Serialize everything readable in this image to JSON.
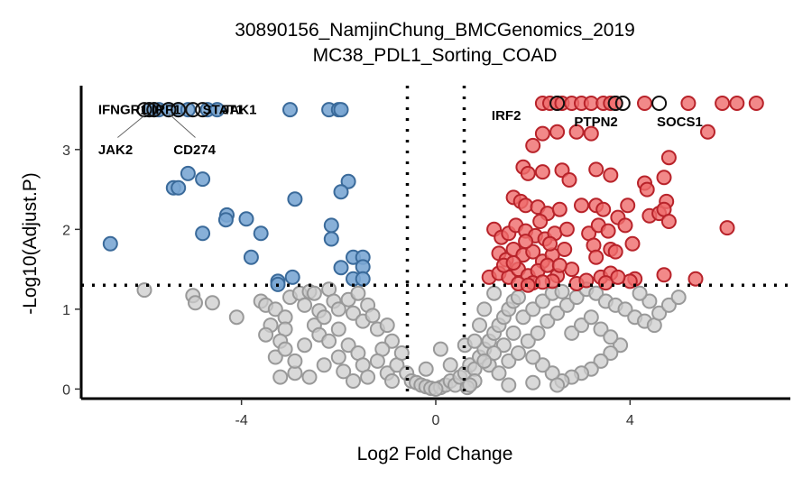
{
  "chart_data": {
    "type": "scatter",
    "title": "30890156_NamjinChung_BMCGenomics_2019",
    "subtitle": "MC38_PDL1_Sorting_COAD",
    "xlabel": "Log2 Fold Change",
    "ylabel": "-Log10(Adjust.P)",
    "xlim": [
      -7.3,
      7.3
    ],
    "ylim": [
      -0.12,
      3.8
    ],
    "xticks": [
      -4,
      0,
      4
    ],
    "xtick_labels": [
      "-4",
      "0",
      "4"
    ],
    "yticks": [
      0,
      1,
      2,
      3
    ],
    "ytick_labels": [
      "0",
      "1",
      "2",
      "3"
    ],
    "grid": false,
    "legend": "none",
    "thresholds": {
      "fc_vline": [
        -0.585,
        0.585
      ],
      "p_hline": 1.3
    },
    "colors": {
      "down_fill": "#7ba7d4",
      "down_stroke": "#3a6a9a",
      "up_fill": "#ef6b6b",
      "up_stroke": "#b8232a",
      "ns_fill": "#cccccc",
      "ns_stroke": "#999999",
      "highlight_stroke": "#111111"
    },
    "series": [
      {
        "name": "down",
        "points": [
          [
            -6.7,
            1.82
          ],
          [
            -5.9,
            3.5
          ],
          [
            -5.8,
            3.5
          ],
          [
            -5.7,
            3.5
          ],
          [
            -5.5,
            3.5
          ],
          [
            -5.3,
            3.5
          ],
          [
            -5.1,
            3.5
          ],
          [
            -4.7,
            3.5
          ],
          [
            -4.5,
            3.5
          ],
          [
            -3.0,
            3.5
          ],
          [
            -2.2,
            3.5
          ],
          [
            -2.0,
            3.5
          ],
          [
            -1.95,
            3.5
          ],
          [
            -5.1,
            2.7
          ],
          [
            -4.8,
            2.63
          ],
          [
            -5.4,
            2.52
          ],
          [
            -5.3,
            2.52
          ],
          [
            -4.8,
            1.95
          ],
          [
            -4.3,
            2.18
          ],
          [
            -4.32,
            2.12
          ],
          [
            -3.9,
            2.13
          ],
          [
            -3.6,
            1.95
          ],
          [
            -3.8,
            1.65
          ],
          [
            -2.9,
            2.38
          ],
          [
            -2.15,
            2.05
          ],
          [
            -2.15,
            1.88
          ],
          [
            -1.8,
            2.6
          ],
          [
            -1.95,
            2.47
          ],
          [
            -1.7,
            1.65
          ],
          [
            -1.5,
            1.65
          ],
          [
            -1.95,
            1.52
          ],
          [
            -1.5,
            1.53
          ],
          [
            -1.7,
            1.38
          ],
          [
            -1.5,
            1.38
          ],
          [
            -3.25,
            1.35
          ],
          [
            -3.25,
            1.31
          ],
          [
            -2.95,
            1.4
          ]
        ]
      },
      {
        "name": "up",
        "points": [
          [
            2.2,
            3.58
          ],
          [
            2.35,
            3.58
          ],
          [
            2.5,
            3.58
          ],
          [
            2.6,
            3.58
          ],
          [
            2.8,
            3.58
          ],
          [
            3.0,
            3.58
          ],
          [
            3.2,
            3.58
          ],
          [
            3.45,
            3.58
          ],
          [
            3.6,
            3.58
          ],
          [
            3.7,
            3.58
          ],
          [
            4.3,
            3.58
          ],
          [
            5.2,
            3.58
          ],
          [
            5.9,
            3.58
          ],
          [
            6.2,
            3.58
          ],
          [
            6.6,
            3.58
          ],
          [
            2.5,
            3.22
          ],
          [
            2.9,
            3.22
          ],
          [
            5.6,
            3.22
          ],
          [
            3.2,
            3.2
          ],
          [
            2.2,
            3.2
          ],
          [
            2.0,
            3.05
          ],
          [
            1.8,
            2.78
          ],
          [
            1.9,
            2.7
          ],
          [
            2.2,
            2.72
          ],
          [
            2.6,
            2.74
          ],
          [
            2.75,
            2.62
          ],
          [
            3.3,
            2.75
          ],
          [
            3.6,
            2.68
          ],
          [
            4.3,
            2.58
          ],
          [
            4.7,
            2.65
          ],
          [
            4.8,
            2.9
          ],
          [
            1.6,
            2.4
          ],
          [
            1.75,
            2.35
          ],
          [
            1.85,
            2.3
          ],
          [
            2.1,
            2.28
          ],
          [
            2.3,
            2.2
          ],
          [
            2.55,
            2.25
          ],
          [
            3.0,
            2.3
          ],
          [
            3.3,
            2.3
          ],
          [
            3.45,
            2.25
          ],
          [
            3.95,
            2.3
          ],
          [
            4.35,
            2.5
          ],
          [
            4.75,
            2.35
          ],
          [
            4.4,
            2.17
          ],
          [
            4.6,
            2.2
          ],
          [
            4.7,
            2.25
          ],
          [
            4.8,
            2.1
          ],
          [
            6.0,
            2.02
          ],
          [
            1.2,
            2.0
          ],
          [
            1.35,
            1.9
          ],
          [
            1.5,
            1.95
          ],
          [
            1.65,
            2.05
          ],
          [
            1.85,
            1.98
          ],
          [
            2.05,
            1.92
          ],
          [
            2.25,
            1.88
          ],
          [
            2.45,
            1.95
          ],
          [
            2.7,
            2.0
          ],
          [
            3.15,
            1.95
          ],
          [
            3.25,
            1.8
          ],
          [
            3.35,
            2.05
          ],
          [
            3.55,
            1.98
          ],
          [
            3.75,
            2.15
          ],
          [
            3.9,
            2.05
          ],
          [
            1.3,
            1.7
          ],
          [
            1.45,
            1.62
          ],
          [
            1.6,
            1.75
          ],
          [
            1.8,
            1.68
          ],
          [
            2.0,
            1.72
          ],
          [
            2.2,
            1.6
          ],
          [
            2.4,
            1.68
          ],
          [
            2.65,
            1.75
          ],
          [
            3.3,
            1.65
          ],
          [
            3.6,
            1.75
          ],
          [
            3.7,
            1.72
          ],
          [
            4.05,
            1.82
          ],
          [
            1.1,
            1.4
          ],
          [
            1.3,
            1.45
          ],
          [
            1.5,
            1.4
          ],
          [
            1.7,
            1.5
          ],
          [
            1.9,
            1.42
          ],
          [
            2.1,
            1.48
          ],
          [
            2.3,
            1.55
          ],
          [
            2.5,
            1.42
          ],
          [
            2.8,
            1.5
          ],
          [
            3.4,
            1.4
          ],
          [
            3.6,
            1.45
          ],
          [
            4.1,
            1.38
          ],
          [
            4.7,
            1.43
          ],
          [
            5.35,
            1.38
          ],
          [
            1.7,
            1.32
          ],
          [
            2.0,
            1.33
          ],
          [
            2.4,
            1.35
          ],
          [
            2.9,
            1.32
          ],
          [
            3.5,
            1.33
          ],
          [
            4.0,
            1.35
          ],
          [
            1.4,
            1.55
          ],
          [
            1.6,
            1.58
          ],
          [
            1.85,
            1.85
          ],
          [
            2.15,
            2.1
          ],
          [
            2.35,
            1.82
          ],
          [
            2.55,
            1.55
          ],
          [
            1.9,
            1.3
          ],
          [
            2.2,
            1.34
          ],
          [
            3.1,
            1.36
          ],
          [
            3.75,
            1.4
          ]
        ]
      },
      {
        "name": "ns",
        "points": [
          [
            -6.0,
            1.24
          ],
          [
            -5.0,
            1.17
          ],
          [
            -4.95,
            1.08
          ],
          [
            -4.6,
            1.08
          ],
          [
            -4.1,
            0.9
          ],
          [
            -3.6,
            1.1
          ],
          [
            -3.5,
            1.05
          ],
          [
            -3.4,
            0.8
          ],
          [
            -3.5,
            0.68
          ],
          [
            -3.3,
            1.0
          ],
          [
            -3.1,
            0.9
          ],
          [
            -3.1,
            0.75
          ],
          [
            -3.2,
            0.6
          ],
          [
            -3.0,
            1.15
          ],
          [
            -2.8,
            1.2
          ],
          [
            -2.6,
            1.22
          ],
          [
            -2.5,
            1.2
          ],
          [
            -2.7,
            1.05
          ],
          [
            -2.4,
            0.98
          ],
          [
            -2.5,
            0.8
          ],
          [
            -2.3,
            0.9
          ],
          [
            -2.4,
            0.68
          ],
          [
            -2.2,
            1.25
          ],
          [
            -2.1,
            1.1
          ],
          [
            -2.0,
            1.0
          ],
          [
            -1.8,
            1.12
          ],
          [
            -1.7,
            0.95
          ],
          [
            -1.6,
            1.2
          ],
          [
            -1.4,
            1.05
          ],
          [
            -1.5,
            0.85
          ],
          [
            -1.3,
            0.92
          ],
          [
            -1.2,
            0.75
          ],
          [
            -1.0,
            0.8
          ],
          [
            -0.9,
            0.6
          ],
          [
            -1.1,
            0.5
          ],
          [
            -2.9,
            0.2
          ],
          [
            -2.6,
            0.15
          ],
          [
            -2.3,
            0.3
          ],
          [
            -2.0,
            0.4
          ],
          [
            -1.8,
            0.55
          ],
          [
            -1.6,
            0.45
          ],
          [
            -1.5,
            0.3
          ],
          [
            -1.4,
            0.15
          ],
          [
            -1.2,
            0.35
          ],
          [
            -1.0,
            0.2
          ],
          [
            -0.9,
            0.1
          ],
          [
            -0.8,
            0.3
          ],
          [
            -0.7,
            0.45
          ],
          [
            -0.6,
            0.2
          ],
          [
            -0.5,
            0.1
          ],
          [
            -0.4,
            0.08
          ],
          [
            -0.3,
            0.05
          ],
          [
            -0.2,
            0.03
          ],
          [
            -0.1,
            0.01
          ],
          [
            -2.7,
            0.55
          ],
          [
            -2.9,
            0.35
          ],
          [
            -3.2,
            0.15
          ],
          [
            -3.3,
            0.4
          ],
          [
            -3.1,
            0.5
          ],
          [
            -2.2,
            0.6
          ],
          [
            -2.0,
            0.75
          ],
          [
            -1.9,
            0.22
          ],
          [
            -1.7,
            0.1
          ],
          [
            0.1,
            0.02
          ],
          [
            0.2,
            0.05
          ],
          [
            0.3,
            0.1
          ],
          [
            0.4,
            0.05
          ],
          [
            0.5,
            0.15
          ],
          [
            0.6,
            0.2
          ],
          [
            0.7,
            0.3
          ],
          [
            0.6,
            0.55
          ],
          [
            0.8,
            0.25
          ],
          [
            0.9,
            0.4
          ],
          [
            1.0,
            0.5
          ],
          [
            1.1,
            0.6
          ],
          [
            1.2,
            0.7
          ],
          [
            1.3,
            0.8
          ],
          [
            1.4,
            0.9
          ],
          [
            1.5,
            1.0
          ],
          [
            1.6,
            1.1
          ],
          [
            1.7,
            1.15
          ],
          [
            1.2,
            1.2
          ],
          [
            1.0,
            1.0
          ],
          [
            0.9,
            0.8
          ],
          [
            0.8,
            0.6
          ],
          [
            1.1,
            0.3
          ],
          [
            1.3,
            0.2
          ],
          [
            1.5,
            0.35
          ],
          [
            1.7,
            0.45
          ],
          [
            1.9,
            0.6
          ],
          [
            2.1,
            0.7
          ],
          [
            2.3,
            0.85
          ],
          [
            2.5,
            0.95
          ],
          [
            2.7,
            1.05
          ],
          [
            2.9,
            1.15
          ],
          [
            3.1,
            1.25
          ],
          [
            3.3,
            1.2
          ],
          [
            3.5,
            1.1
          ],
          [
            3.7,
            1.05
          ],
          [
            3.9,
            1.0
          ],
          [
            4.1,
            0.9
          ],
          [
            4.3,
            0.85
          ],
          [
            4.5,
            0.8
          ],
          [
            4.6,
            0.95
          ],
          [
            4.8,
            1.05
          ],
          [
            5.0,
            1.15
          ],
          [
            4.4,
            1.1
          ],
          [
            4.2,
            1.2
          ],
          [
            3.8,
            0.55
          ],
          [
            3.6,
            0.45
          ],
          [
            3.4,
            0.35
          ],
          [
            3.2,
            0.25
          ],
          [
            3.0,
            0.2
          ],
          [
            2.8,
            0.15
          ],
          [
            2.6,
            0.1
          ],
          [
            2.4,
            0.2
          ],
          [
            2.2,
            0.3
          ],
          [
            2.0,
            0.4
          ],
          [
            1.8,
            0.9
          ],
          [
            2.0,
            1.0
          ],
          [
            2.2,
            1.1
          ],
          [
            2.4,
            1.2
          ],
          [
            2.6,
            1.22
          ],
          [
            2.8,
            0.7
          ],
          [
            3.0,
            0.8
          ],
          [
            3.2,
            0.9
          ],
          [
            3.4,
            0.75
          ],
          [
            3.6,
            0.65
          ],
          [
            1.6,
            0.7
          ],
          [
            1.4,
            0.55
          ],
          [
            1.2,
            0.45
          ],
          [
            1.0,
            0.35
          ],
          [
            0.8,
            0.1
          ],
          [
            0.65,
            0.02
          ],
          [
            0.7,
            0.05
          ],
          [
            1.5,
            0.05
          ],
          [
            2.0,
            0.08
          ],
          [
            2.5,
            0.05
          ],
          [
            0.0,
            0.0
          ],
          [
            0.1,
            0.5
          ],
          [
            0.3,
            0.3
          ],
          [
            -0.2,
            0.25
          ]
        ]
      },
      {
        "name": "highlighted",
        "points": [
          [
            -6.0,
            3.5
          ],
          [
            -5.9,
            3.5
          ],
          [
            -5.8,
            3.5
          ],
          [
            -5.5,
            3.5
          ],
          [
            -5.3,
            3.5
          ],
          [
            -5.0,
            3.5
          ],
          [
            -4.8,
            3.5
          ],
          [
            2.5,
            3.58
          ],
          [
            3.7,
            3.58
          ],
          [
            3.85,
            3.58
          ],
          [
            4.6,
            3.58
          ]
        ]
      }
    ],
    "annotations": [
      {
        "text": "IFNGR1",
        "x": -6.95,
        "y": 3.5,
        "anchor": "start"
      },
      {
        "text": "IRF1",
        "x": -5.85,
        "y": 3.5,
        "anchor": "start"
      },
      {
        "text": "STAT1",
        "x": -4.8,
        "y": 3.5,
        "anchor": "start"
      },
      {
        "text": "JAK1",
        "x": -4.4,
        "y": 3.5,
        "anchor": "start"
      },
      {
        "text": "JAK2",
        "x": -6.95,
        "y": 3.0,
        "anchor": "start",
        "lx1": -5.95,
        "ly1": 3.45,
        "lx2": -6.55,
        "ly2": 3.15
      },
      {
        "text": "CD274",
        "x": -5.4,
        "y": 3.0,
        "anchor": "start",
        "lx1": -5.5,
        "ly1": 3.45,
        "lx2": -4.95,
        "ly2": 3.15
      },
      {
        "text": "IRF2",
        "x": 1.15,
        "y": 3.43,
        "anchor": "start"
      },
      {
        "text": "PTPN2",
        "x": 2.85,
        "y": 3.35,
        "anchor": "start"
      },
      {
        "text": "SOCS1",
        "x": 4.55,
        "y": 3.35,
        "anchor": "start"
      }
    ]
  }
}
